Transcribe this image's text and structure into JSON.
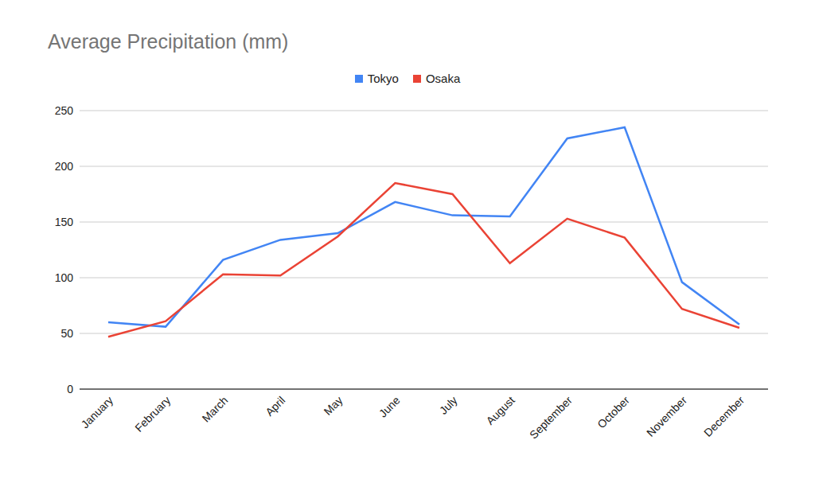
{
  "chart_data": {
    "type": "line",
    "title": "Average Precipitation (mm)",
    "categories": [
      "January",
      "February",
      "March",
      "April",
      "May",
      "June",
      "July",
      "August",
      "September",
      "October",
      "November",
      "December"
    ],
    "series": [
      {
        "name": "Tokyo",
        "color": "#4285f4",
        "values": [
          60,
          56,
          116,
          134,
          140,
          168,
          156,
          155,
          225,
          235,
          96,
          58
        ]
      },
      {
        "name": "Osaka",
        "color": "#ea4335",
        "values": [
          47,
          61,
          103,
          102,
          137,
          185,
          175,
          113,
          153,
          136,
          72,
          55
        ]
      }
    ],
    "ylim": [
      0,
      250
    ],
    "yticks": [
      0,
      50,
      100,
      150,
      200,
      250
    ],
    "grid": true,
    "legend": "top"
  }
}
